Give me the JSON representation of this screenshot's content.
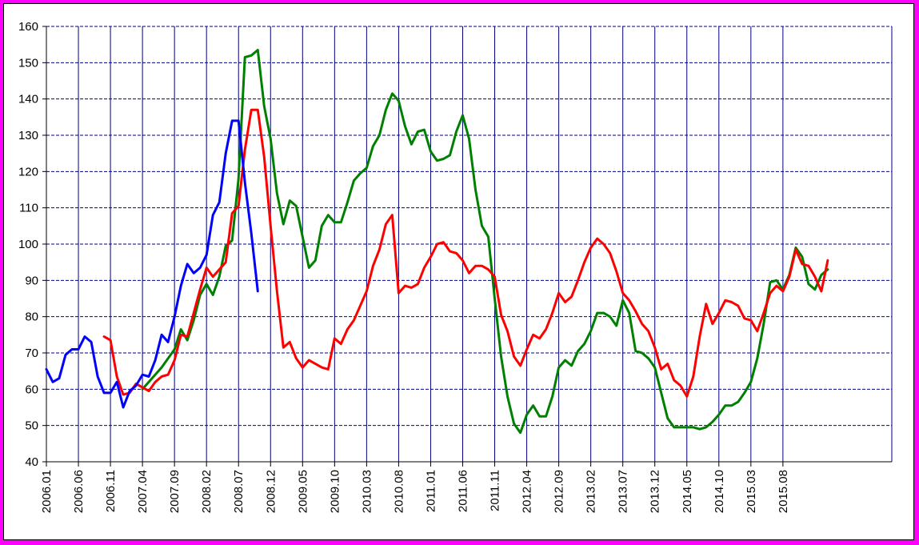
{
  "chart_data": {
    "type": "line",
    "title": "",
    "xlabel": "",
    "ylabel": "",
    "ylim": [
      40,
      160
    ],
    "yticks": [
      40,
      50,
      60,
      70,
      80,
      90,
      100,
      110,
      120,
      130,
      140,
      150,
      160
    ],
    "xlim": [
      "2006.01",
      "2016.12"
    ],
    "xticks": [
      "2006.01",
      "2006.06",
      "2006.11",
      "2007.04",
      "2007.09",
      "2008.02",
      "2008.07",
      "2008.12",
      "2009.05",
      "2009.10",
      "2010.03",
      "2010.08",
      "2011.01",
      "2011.06",
      "2011.11",
      "2012.04",
      "2012.09",
      "2013.02",
      "2013.07",
      "2013.12",
      "2014.05",
      "2014.10",
      "2015.03",
      "2015.08"
    ],
    "grid": true,
    "legend": "none",
    "colors": {
      "green": "#008000",
      "red": "#ff0000",
      "blue": "#0000ff",
      "grid": "#000080",
      "frame": "#ff00ff"
    },
    "series": [
      {
        "color": "#008000",
        "points": [
          [
            "2007.04",
            60
          ],
          [
            "2007.07",
            66
          ],
          [
            "2007.09",
            71
          ],
          [
            "2007.10",
            76.5
          ],
          [
            "2007.11",
            73.5
          ],
          [
            "2007.12",
            79
          ],
          [
            "2008.01",
            86
          ],
          [
            "2008.02",
            89
          ],
          [
            "2008.03",
            86
          ],
          [
            "2008.04",
            91
          ],
          [
            "2008.05",
            99.5
          ],
          [
            "2008.06",
            101
          ],
          [
            "2008.07",
            118
          ],
          [
            "2008.08",
            151.5
          ],
          [
            "2008.09",
            152
          ],
          [
            "2008.10",
            153.5
          ],
          [
            "2008.11",
            138
          ],
          [
            "2008.12",
            129
          ],
          [
            "2009.01",
            114
          ],
          [
            "2009.02",
            105.5
          ],
          [
            "2009.03",
            112
          ],
          [
            "2009.04",
            110.5
          ],
          [
            "2009.05",
            102
          ],
          [
            "2009.06",
            93.5
          ],
          [
            "2009.07",
            95.5
          ],
          [
            "2009.08",
            105
          ],
          [
            "2009.09",
            108
          ],
          [
            "2009.10",
            106
          ],
          [
            "2009.11",
            106
          ],
          [
            "2009.12",
            111.5
          ],
          [
            "2010.01",
            117.5
          ],
          [
            "2010.02",
            119.5
          ],
          [
            "2010.03",
            121
          ],
          [
            "2010.04",
            127
          ],
          [
            "2010.05",
            130
          ],
          [
            "2010.06",
            137
          ],
          [
            "2010.07",
            141.5
          ],
          [
            "2010.08",
            139.5
          ],
          [
            "2010.09",
            132.5
          ],
          [
            "2010.10",
            127.5
          ],
          [
            "2010.11",
            131
          ],
          [
            "2010.12",
            131.5
          ],
          [
            "2011.01",
            125.5
          ],
          [
            "2011.02",
            123
          ],
          [
            "2011.03",
            123.5
          ],
          [
            "2011.04",
            124.5
          ],
          [
            "2011.05",
            131
          ],
          [
            "2011.06",
            135.5
          ],
          [
            "2011.07",
            129
          ],
          [
            "2011.08",
            115
          ],
          [
            "2011.09",
            105
          ],
          [
            "2011.10",
            102
          ],
          [
            "2011.11",
            85
          ],
          [
            "2011.12",
            69
          ],
          [
            "2012.01",
            58
          ],
          [
            "2012.02",
            50.5
          ],
          [
            "2012.03",
            48
          ],
          [
            "2012.04",
            53
          ],
          [
            "2012.05",
            55.5
          ],
          [
            "2012.06",
            52.5
          ],
          [
            "2012.07",
            52.5
          ],
          [
            "2012.08",
            58
          ],
          [
            "2012.09",
            66
          ],
          [
            "2012.10",
            68
          ],
          [
            "2012.11",
            66.5
          ],
          [
            "2012.12",
            70.5
          ],
          [
            "2013.01",
            72.5
          ],
          [
            "2013.02",
            76
          ],
          [
            "2013.03",
            81
          ],
          [
            "2013.04",
            81
          ],
          [
            "2013.05",
            80
          ],
          [
            "2013.06",
            77.5
          ],
          [
            "2013.07",
            84.5
          ],
          [
            "2013.08",
            81
          ],
          [
            "2013.09",
            70.5
          ],
          [
            "2013.10",
            70
          ],
          [
            "2013.11",
            68.5
          ],
          [
            "2013.12",
            66
          ],
          [
            "2014.01",
            59
          ],
          [
            "2014.02",
            52
          ],
          [
            "2014.03",
            49.5
          ],
          [
            "2014.04",
            49.5
          ],
          [
            "2014.05",
            49.5
          ],
          [
            "2014.06",
            49.5
          ],
          [
            "2014.07",
            49
          ],
          [
            "2014.08",
            49.5
          ],
          [
            "2014.09",
            51
          ],
          [
            "2014.10",
            53
          ],
          [
            "2014.11",
            55.5
          ],
          [
            "2014.12",
            55.5
          ],
          [
            "2015.01",
            56.5
          ],
          [
            "2015.02",
            59
          ],
          [
            "2015.03",
            62
          ],
          [
            "2015.04",
            68.5
          ],
          [
            "2015.05",
            78
          ],
          [
            "2015.06",
            89.5
          ],
          [
            "2015.07",
            90
          ],
          [
            "2015.08",
            87.5
          ],
          [
            "2015.09",
            91.5
          ],
          [
            "2015.10",
            99
          ],
          [
            "2015.11",
            96.5
          ],
          [
            "2015.12",
            89
          ],
          [
            "2016.01",
            87.5
          ],
          [
            "2016.02",
            91.5
          ],
          [
            "2016.03",
            93
          ]
        ]
      },
      {
        "color": "#ff0000",
        "points": [
          [
            "2006.10",
            74.5
          ],
          [
            "2006.11",
            73.5
          ],
          [
            "2006.12",
            63.5
          ],
          [
            "2007.01",
            58.5
          ],
          [
            "2007.02",
            59
          ],
          [
            "2007.03",
            61.5
          ],
          [
            "2007.04",
            60.5
          ],
          [
            "2007.05",
            59.5
          ],
          [
            "2007.06",
            62
          ],
          [
            "2007.07",
            63.5
          ],
          [
            "2007.08",
            64
          ],
          [
            "2007.09",
            68
          ],
          [
            "2007.10",
            75
          ],
          [
            "2007.11",
            74.5
          ],
          [
            "2007.12",
            81
          ],
          [
            "2008.01",
            87.5
          ],
          [
            "2008.02",
            93.5
          ],
          [
            "2008.03",
            91
          ],
          [
            "2008.04",
            93
          ],
          [
            "2008.05",
            95
          ],
          [
            "2008.06",
            108.5
          ],
          [
            "2008.07",
            110.5
          ],
          [
            "2008.08",
            126
          ],
          [
            "2008.09",
            137
          ],
          [
            "2008.10",
            137
          ],
          [
            "2008.11",
            124
          ],
          [
            "2008.12",
            105
          ],
          [
            "2009.01",
            87
          ],
          [
            "2009.02",
            71.5
          ],
          [
            "2009.03",
            73
          ],
          [
            "2009.04",
            68.5
          ],
          [
            "2009.05",
            66
          ],
          [
            "2009.06",
            68
          ],
          [
            "2009.07",
            67
          ],
          [
            "2009.08",
            66
          ],
          [
            "2009.09",
            65.5
          ],
          [
            "2009.10",
            74
          ],
          [
            "2009.11",
            72.5
          ],
          [
            "2009.12",
            76.5
          ],
          [
            "2010.01",
            79
          ],
          [
            "2010.02",
            83
          ],
          [
            "2010.03",
            87
          ],
          [
            "2010.04",
            94
          ],
          [
            "2010.05",
            98.5
          ],
          [
            "2010.06",
            105.5
          ],
          [
            "2010.07",
            108
          ],
          [
            "2010.08",
            86.5
          ],
          [
            "2010.09",
            88.5
          ],
          [
            "2010.10",
            88
          ],
          [
            "2010.11",
            89
          ],
          [
            "2010.12",
            93.5
          ],
          [
            "2011.01",
            96.5
          ],
          [
            "2011.02",
            100
          ],
          [
            "2011.03",
            100.5
          ],
          [
            "2011.04",
            98
          ],
          [
            "2011.05",
            97.5
          ],
          [
            "2011.06",
            95.5
          ],
          [
            "2011.07",
            92
          ],
          [
            "2011.08",
            94
          ],
          [
            "2011.09",
            94
          ],
          [
            "2011.10",
            93
          ],
          [
            "2011.11",
            91
          ],
          [
            "2011.12",
            80.5
          ],
          [
            "2012.01",
            76
          ],
          [
            "2012.02",
            69
          ],
          [
            "2012.03",
            66.5
          ],
          [
            "2012.04",
            71
          ],
          [
            "2012.05",
            75
          ],
          [
            "2012.06",
            74
          ],
          [
            "2012.07",
            76.5
          ],
          [
            "2012.08",
            81
          ],
          [
            "2012.09",
            86.5
          ],
          [
            "2012.10",
            84
          ],
          [
            "2012.11",
            85.5
          ],
          [
            "2012.12",
            90
          ],
          [
            "2013.01",
            95
          ],
          [
            "2013.02",
            99
          ],
          [
            "2013.03",
            101.5
          ],
          [
            "2013.04",
            100
          ],
          [
            "2013.05",
            97.5
          ],
          [
            "2013.06",
            92.5
          ],
          [
            "2013.07",
            86.5
          ],
          [
            "2013.08",
            84.5
          ],
          [
            "2013.09",
            81.5
          ],
          [
            "2013.10",
            78
          ],
          [
            "2013.11",
            76
          ],
          [
            "2013.12",
            71.5
          ],
          [
            "2014.01",
            65.5
          ],
          [
            "2014.02",
            67
          ],
          [
            "2014.03",
            62.5
          ],
          [
            "2014.04",
            61
          ],
          [
            "2014.05",
            58
          ],
          [
            "2014.06",
            63.5
          ],
          [
            "2014.07",
            74.5
          ],
          [
            "2014.08",
            83.5
          ],
          [
            "2014.09",
            78
          ],
          [
            "2014.10",
            81
          ],
          [
            "2014.11",
            84.5
          ],
          [
            "2014.12",
            84
          ],
          [
            "2015.01",
            83
          ],
          [
            "2015.02",
            79.5
          ],
          [
            "2015.03",
            79
          ],
          [
            "2015.04",
            76
          ],
          [
            "2015.05",
            81
          ],
          [
            "2015.06",
            86.5
          ],
          [
            "2015.07",
            88.5
          ],
          [
            "2015.08",
            87
          ],
          [
            "2015.09",
            91
          ],
          [
            "2015.10",
            98.5
          ],
          [
            "2015.11",
            94.5
          ],
          [
            "2015.12",
            94
          ],
          [
            "2016.01",
            91
          ],
          [
            "2016.02",
            87
          ],
          [
            "2016.03",
            95.5
          ]
        ]
      },
      {
        "color": "#0000ff",
        "points": [
          [
            "2006.01",
            65.5
          ],
          [
            "2006.02",
            62
          ],
          [
            "2006.03",
            63
          ],
          [
            "2006.04",
            69.5
          ],
          [
            "2006.05",
            71
          ],
          [
            "2006.06",
            71
          ],
          [
            "2006.07",
            74.5
          ],
          [
            "2006.08",
            73
          ],
          [
            "2006.09",
            63.5
          ],
          [
            "2006.10",
            59
          ],
          [
            "2006.11",
            59
          ],
          [
            "2006.12",
            62
          ],
          [
            "2007.01",
            55
          ],
          [
            "2007.02",
            59.5
          ],
          [
            "2007.03",
            61
          ],
          [
            "2007.04",
            64
          ],
          [
            "2007.05",
            63.5
          ],
          [
            "2007.06",
            68
          ],
          [
            "2007.07",
            75
          ],
          [
            "2007.08",
            73
          ],
          [
            "2007.09",
            80
          ],
          [
            "2007.10",
            88.5
          ],
          [
            "2007.11",
            94.5
          ],
          [
            "2007.12",
            92
          ],
          [
            "2008.01",
            93.5
          ],
          [
            "2008.02",
            97
          ],
          [
            "2008.03",
            108
          ],
          [
            "2008.04",
            111.5
          ],
          [
            "2008.05",
            125
          ],
          [
            "2008.06",
            134
          ],
          [
            "2008.07",
            134
          ],
          [
            "2008.08",
            117
          ],
          [
            "2008.09",
            103
          ],
          [
            "2008.10",
            87
          ]
        ]
      }
    ]
  }
}
